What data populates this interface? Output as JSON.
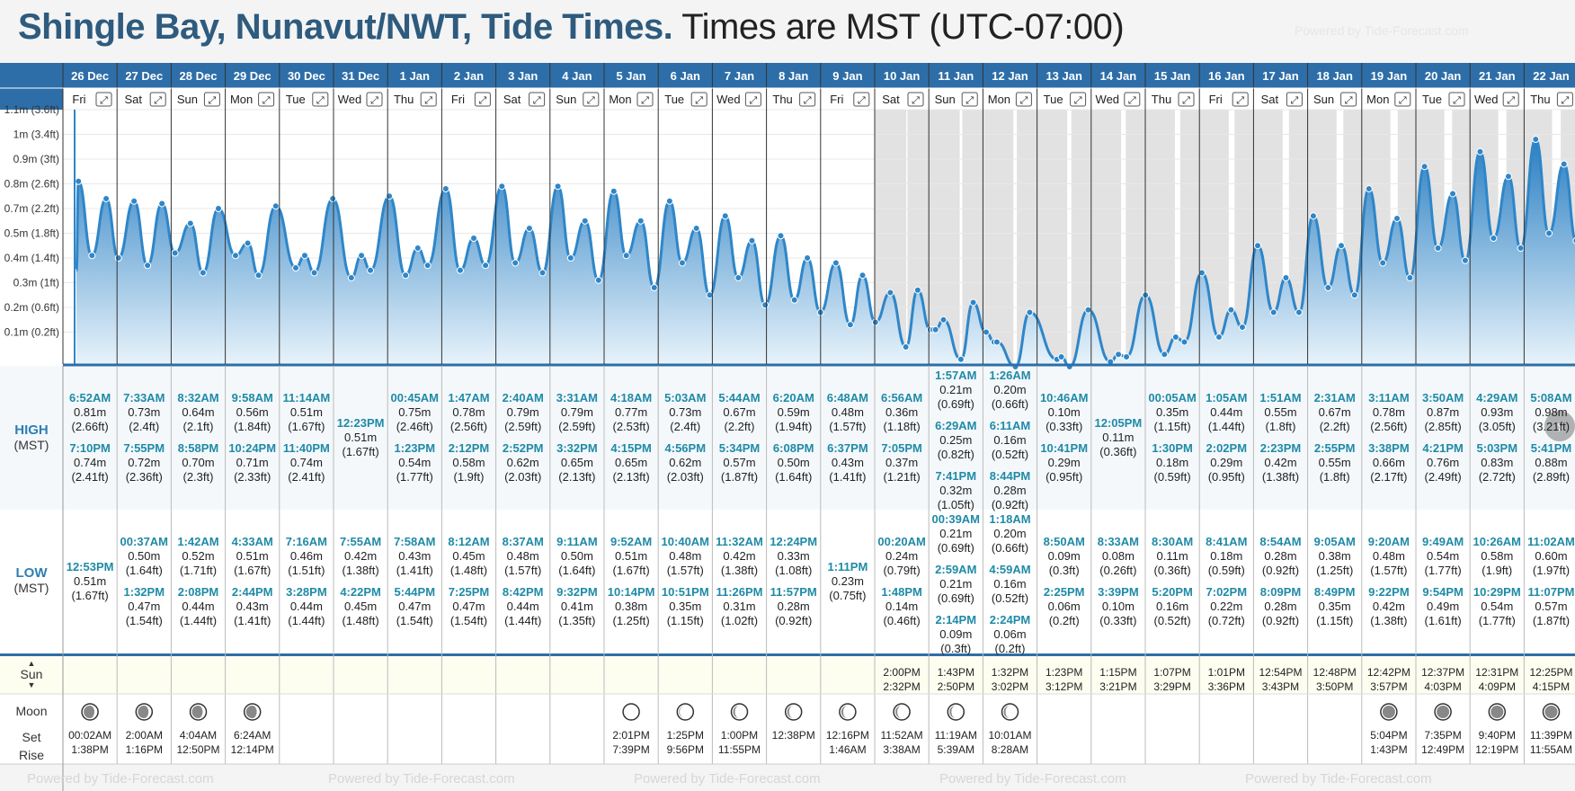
{
  "header": {
    "place": "Shingle Bay, Nunavut/NWT, Tide Times.",
    "tz": "Times are MST (UTC-07:00)",
    "powered": "Powered by Tide-Forecast.com"
  },
  "labels": {
    "high": "HIGH",
    "low": "LOW",
    "mst": "(MST)",
    "sun": "Sun",
    "moon": "Moon",
    "set": "Set",
    "rise": "Rise"
  },
  "icons": {
    "expand": "expand-icon",
    "scroll": "chevron-right-icon",
    "sun_sort": "sort-arrows-icon",
    "moon": "moon-phase-icon"
  },
  "y_axis": [
    "1.1m (3.6ft)",
    "1m (3.4ft)",
    "0.9m (3ft)",
    "0.8m (2.6ft)",
    "0.7m (2.2ft)",
    "0.5m (1.8ft)",
    "0.4m (1.4ft)",
    "0.3m (1ft)",
    "0.2m (0.6ft)",
    "0.1m (0.2ft)"
  ],
  "days": [
    {
      "date": "26 Dec",
      "wd": "Fri",
      "high": [
        [
          "6:52AM",
          "0.81m",
          "(2.66ft)"
        ],
        [
          "7:10PM",
          "0.74m",
          "(2.41ft)"
        ]
      ],
      "low": [
        [
          "12:53PM",
          "0.51m",
          "(1.67ft)"
        ]
      ],
      "sun": [
        "",
        ""
      ],
      "phase": 0.75,
      "moon": [
        "00:02AM",
        "1:38PM"
      ]
    },
    {
      "date": "27 Dec",
      "wd": "Sat",
      "high": [
        [
          "7:33AM",
          "0.73m",
          "(2.4ft)"
        ],
        [
          "7:55PM",
          "0.72m",
          "(2.36ft)"
        ]
      ],
      "low": [
        [
          "00:37AM",
          "0.50m",
          "(1.64ft)"
        ],
        [
          "1:32PM",
          "0.47m",
          "(1.54ft)"
        ]
      ],
      "sun": [
        "",
        ""
      ],
      "phase": 0.75,
      "moon": [
        "2:00AM",
        "1:16PM"
      ]
    },
    {
      "date": "28 Dec",
      "wd": "Sun",
      "high": [
        [
          "8:32AM",
          "0.64m",
          "(2.1ft)"
        ],
        [
          "8:58PM",
          "0.70m",
          "(2.3ft)"
        ]
      ],
      "low": [
        [
          "1:42AM",
          "0.52m",
          "(1.71ft)"
        ],
        [
          "2:08PM",
          "0.44m",
          "(1.44ft)"
        ]
      ],
      "sun": [
        "",
        ""
      ],
      "phase": 0.75,
      "moon": [
        "4:04AM",
        "12:50PM"
      ]
    },
    {
      "date": "29 Dec",
      "wd": "Mon",
      "high": [
        [
          "9:58AM",
          "0.56m",
          "(1.84ft)"
        ],
        [
          "10:24PM",
          "0.71m",
          "(2.33ft)"
        ]
      ],
      "low": [
        [
          "4:33AM",
          "0.51m",
          "(1.67ft)"
        ],
        [
          "2:44PM",
          "0.43m",
          "(1.41ft)"
        ]
      ],
      "sun": [
        "",
        ""
      ],
      "phase": 0.75,
      "moon": [
        "6:24AM",
        "12:14PM"
      ]
    },
    {
      "date": "30 Dec",
      "wd": "Tue",
      "high": [
        [
          "11:14AM",
          "0.51m",
          "(1.67ft)"
        ],
        [
          "11:40PM",
          "0.74m",
          "(2.41ft)"
        ]
      ],
      "low": [
        [
          "7:16AM",
          "0.46m",
          "(1.51ft)"
        ],
        [
          "3:28PM",
          "0.44m",
          "(1.44ft)"
        ]
      ],
      "sun": [
        "",
        ""
      ],
      "phase": -1,
      "moon": [
        "",
        ""
      ]
    },
    {
      "date": "31 Dec",
      "wd": "Wed",
      "high": [
        [
          "12:23PM",
          "0.51m",
          "(1.67ft)"
        ]
      ],
      "low": [
        [
          "7:55AM",
          "0.42m",
          "(1.38ft)"
        ],
        [
          "4:22PM",
          "0.45m",
          "(1.48ft)"
        ]
      ],
      "sun": [
        "",
        ""
      ],
      "phase": -1,
      "moon": [
        "",
        ""
      ]
    },
    {
      "date": "1 Jan",
      "wd": "Thu",
      "high": [
        [
          "00:45AM",
          "0.75m",
          "(2.46ft)"
        ],
        [
          "1:23PM",
          "0.54m",
          "(1.77ft)"
        ]
      ],
      "low": [
        [
          "7:58AM",
          "0.43m",
          "(1.41ft)"
        ],
        [
          "5:44PM",
          "0.47m",
          "(1.54ft)"
        ]
      ],
      "sun": [
        "",
        ""
      ],
      "phase": -1,
      "moon": [
        "",
        ""
      ]
    },
    {
      "date": "2 Jan",
      "wd": "Fri",
      "high": [
        [
          "1:47AM",
          "0.78m",
          "(2.56ft)"
        ],
        [
          "2:12PM",
          "0.58m",
          "(1.9ft)"
        ]
      ],
      "low": [
        [
          "8:12AM",
          "0.45m",
          "(1.48ft)"
        ],
        [
          "7:25PM",
          "0.47m",
          "(1.54ft)"
        ]
      ],
      "sun": [
        "",
        ""
      ],
      "phase": -1,
      "moon": [
        "",
        ""
      ]
    },
    {
      "date": "3 Jan",
      "wd": "Sat",
      "high": [
        [
          "2:40AM",
          "0.79m",
          "(2.59ft)"
        ],
        [
          "2:52PM",
          "0.62m",
          "(2.03ft)"
        ]
      ],
      "low": [
        [
          "8:37AM",
          "0.48m",
          "(1.57ft)"
        ],
        [
          "8:42PM",
          "0.44m",
          "(1.44ft)"
        ]
      ],
      "sun": [
        "",
        ""
      ],
      "phase": -1,
      "moon": [
        "",
        ""
      ]
    },
    {
      "date": "4 Jan",
      "wd": "Sun",
      "high": [
        [
          "3:31AM",
          "0.79m",
          "(2.59ft)"
        ],
        [
          "3:32PM",
          "0.65m",
          "(2.13ft)"
        ]
      ],
      "low": [
        [
          "9:11AM",
          "0.50m",
          "(1.64ft)"
        ],
        [
          "9:32PM",
          "0.41m",
          "(1.35ft)"
        ]
      ],
      "sun": [
        "",
        ""
      ],
      "phase": -1,
      "moon": [
        "",
        ""
      ]
    },
    {
      "date": "5 Jan",
      "wd": "Mon",
      "high": [
        [
          "4:18AM",
          "0.77m",
          "(2.53ft)"
        ],
        [
          "4:15PM",
          "0.65m",
          "(2.13ft)"
        ]
      ],
      "low": [
        [
          "9:52AM",
          "0.51m",
          "(1.67ft)"
        ],
        [
          "10:14PM",
          "0.38m",
          "(1.25ft)"
        ]
      ],
      "sun": [
        "",
        ""
      ],
      "phase": 0.05,
      "moon": [
        "2:01PM",
        "7:39PM"
      ]
    },
    {
      "date": "6 Jan",
      "wd": "Tue",
      "high": [
        [
          "5:03AM",
          "0.73m",
          "(2.4ft)"
        ],
        [
          "4:56PM",
          "0.62m",
          "(2.03ft)"
        ]
      ],
      "low": [
        [
          "10:40AM",
          "0.48m",
          "(1.57ft)"
        ],
        [
          "10:51PM",
          "0.35m",
          "(1.15ft)"
        ]
      ],
      "sun": [
        "",
        ""
      ],
      "phase": 0.15,
      "moon": [
        "1:25PM",
        "9:56PM"
      ]
    },
    {
      "date": "7 Jan",
      "wd": "Wed",
      "high": [
        [
          "5:44AM",
          "0.67m",
          "(2.2ft)"
        ],
        [
          "5:34PM",
          "0.57m",
          "(1.87ft)"
        ]
      ],
      "low": [
        [
          "11:32AM",
          "0.42m",
          "(1.38ft)"
        ],
        [
          "11:26PM",
          "0.31m",
          "(1.02ft)"
        ]
      ],
      "sun": [
        "",
        ""
      ],
      "phase": 0.25,
      "moon": [
        "1:00PM",
        "11:55PM"
      ]
    },
    {
      "date": "8 Jan",
      "wd": "Thu",
      "high": [
        [
          "6:20AM",
          "0.59m",
          "(1.94ft)"
        ],
        [
          "6:08PM",
          "0.50m",
          "(1.64ft)"
        ]
      ],
      "low": [
        [
          "12:24PM",
          "0.33m",
          "(1.08ft)"
        ],
        [
          "11:57PM",
          "0.28m",
          "(0.92ft)"
        ]
      ],
      "sun": [
        "",
        ""
      ],
      "phase": 0.25,
      "moon": [
        "12:38PM",
        ""
      ]
    },
    {
      "date": "9 Jan",
      "wd": "Fri",
      "high": [
        [
          "6:48AM",
          "0.48m",
          "(1.57ft)"
        ],
        [
          "6:37PM",
          "0.43m",
          "(1.41ft)"
        ]
      ],
      "low": [
        [
          "1:11PM",
          "0.23m",
          "(0.75ft)"
        ]
      ],
      "sun": [
        "",
        ""
      ],
      "phase": 0.25,
      "moon": [
        "12:16PM",
        "1:46AM"
      ]
    },
    {
      "date": "10 Jan",
      "wd": "Sat",
      "high": [
        [
          "6:56AM",
          "0.36m",
          "(1.18ft)"
        ],
        [
          "7:05PM",
          "0.37m",
          "(1.21ft)"
        ]
      ],
      "low": [
        [
          "00:20AM",
          "0.24m",
          "(0.79ft)"
        ],
        [
          "1:48PM",
          "0.14m",
          "(0.46ft)"
        ]
      ],
      "sun": [
        "2:00PM",
        "2:32PM"
      ],
      "phase": 0.25,
      "moon": [
        "11:52AM",
        "3:38AM"
      ]
    },
    {
      "date": "11 Jan",
      "wd": "Sun",
      "high": [
        [
          "1:57AM",
          "0.21m",
          "(0.69ft)"
        ],
        [
          "6:29AM",
          "0.25m",
          "(0.82ft)"
        ],
        [
          "7:41PM",
          "0.32m",
          "(1.05ft)"
        ]
      ],
      "low": [
        [
          "00:39AM",
          "0.21m",
          "(0.69ft)"
        ],
        [
          "2:59AM",
          "0.21m",
          "(0.69ft)"
        ],
        [
          "2:14PM",
          "0.09m",
          "(0.3ft)"
        ]
      ],
      "sun": [
        "1:43PM",
        "2:50PM"
      ],
      "phase": 0.25,
      "moon": [
        "11:19AM",
        "5:39AM"
      ]
    },
    {
      "date": "12 Jan",
      "wd": "Mon",
      "high": [
        [
          "1:26AM",
          "0.20m",
          "(0.66ft)"
        ],
        [
          "6:11AM",
          "0.16m",
          "(0.52ft)"
        ],
        [
          "8:44PM",
          "0.28m",
          "(0.92ft)"
        ]
      ],
      "low": [
        [
          "1:18AM",
          "0.20m",
          "(0.66ft)"
        ],
        [
          "4:59AM",
          "0.16m",
          "(0.52ft)"
        ],
        [
          "2:24PM",
          "0.06m",
          "(0.2ft)"
        ]
      ],
      "sun": [
        "1:32PM",
        "3:02PM"
      ],
      "phase": 0.25,
      "moon": [
        "10:01AM",
        "8:28AM"
      ]
    },
    {
      "date": "13 Jan",
      "wd": "Tue",
      "high": [
        [
          "10:46AM",
          "0.10m",
          "(0.33ft)"
        ],
        [
          "10:41PM",
          "0.29m",
          "(0.95ft)"
        ]
      ],
      "low": [
        [
          "8:50AM",
          "0.09m",
          "(0.3ft)"
        ],
        [
          "2:25PM",
          "0.06m",
          "(0.2ft)"
        ]
      ],
      "sun": [
        "1:23PM",
        "3:12PM"
      ],
      "phase": -1,
      "moon": [
        "",
        ""
      ]
    },
    {
      "date": "14 Jan",
      "wd": "Wed",
      "high": [
        [
          "12:05PM",
          "0.11m",
          "(0.36ft)"
        ]
      ],
      "low": [
        [
          "8:33AM",
          "0.08m",
          "(0.26ft)"
        ],
        [
          "3:39PM",
          "0.10m",
          "(0.33ft)"
        ]
      ],
      "sun": [
        "1:15PM",
        "3:21PM"
      ],
      "phase": -1,
      "moon": [
        "",
        ""
      ]
    },
    {
      "date": "15 Jan",
      "wd": "Thu",
      "high": [
        [
          "00:05AM",
          "0.35m",
          "(1.15ft)"
        ],
        [
          "1:30PM",
          "0.18m",
          "(0.59ft)"
        ]
      ],
      "low": [
        [
          "8:30AM",
          "0.11m",
          "(0.36ft)"
        ],
        [
          "5:20PM",
          "0.16m",
          "(0.52ft)"
        ]
      ],
      "sun": [
        "1:07PM",
        "3:29PM"
      ],
      "phase": -1,
      "moon": [
        "",
        ""
      ]
    },
    {
      "date": "16 Jan",
      "wd": "Fri",
      "high": [
        [
          "1:05AM",
          "0.44m",
          "(1.44ft)"
        ],
        [
          "2:02PM",
          "0.29m",
          "(0.95ft)"
        ]
      ],
      "low": [
        [
          "8:41AM",
          "0.18m",
          "(0.59ft)"
        ],
        [
          "7:02PM",
          "0.22m",
          "(0.72ft)"
        ]
      ],
      "sun": [
        "1:01PM",
        "3:36PM"
      ],
      "phase": -1,
      "moon": [
        "",
        ""
      ]
    },
    {
      "date": "17 Jan",
      "wd": "Sat",
      "high": [
        [
          "1:51AM",
          "0.55m",
          "(1.8ft)"
        ],
        [
          "2:23PM",
          "0.42m",
          "(1.38ft)"
        ]
      ],
      "low": [
        [
          "8:54AM",
          "0.28m",
          "(0.92ft)"
        ],
        [
          "8:09PM",
          "0.28m",
          "(0.92ft)"
        ]
      ],
      "sun": [
        "12:54PM",
        "3:43PM"
      ],
      "phase": -1,
      "moon": [
        "",
        ""
      ]
    },
    {
      "date": "18 Jan",
      "wd": "Sun",
      "high": [
        [
          "2:31AM",
          "0.67m",
          "(2.2ft)"
        ],
        [
          "2:55PM",
          "0.55m",
          "(1.8ft)"
        ]
      ],
      "low": [
        [
          "9:05AM",
          "0.38m",
          "(1.25ft)"
        ],
        [
          "8:49PM",
          "0.35m",
          "(1.15ft)"
        ]
      ],
      "sun": [
        "12:48PM",
        "3:50PM"
      ],
      "phase": -1,
      "moon": [
        "",
        ""
      ]
    },
    {
      "date": "19 Jan",
      "wd": "Mon",
      "high": [
        [
          "3:11AM",
          "0.78m",
          "(2.56ft)"
        ],
        [
          "3:38PM",
          "0.66m",
          "(2.17ft)"
        ]
      ],
      "low": [
        [
          "9:20AM",
          "0.48m",
          "(1.57ft)"
        ],
        [
          "9:22PM",
          "0.42m",
          "(1.38ft)"
        ]
      ],
      "sun": [
        "12:42PM",
        "3:57PM"
      ],
      "phase": 1,
      "moon": [
        "5:04PM",
        "1:43PM"
      ]
    },
    {
      "date": "20 Jan",
      "wd": "Tue",
      "high": [
        [
          "3:50AM",
          "0.87m",
          "(2.85ft)"
        ],
        [
          "4:21PM",
          "0.76m",
          "(2.49ft)"
        ]
      ],
      "low": [
        [
          "9:49AM",
          "0.54m",
          "(1.77ft)"
        ],
        [
          "9:54PM",
          "0.49m",
          "(1.61ft)"
        ]
      ],
      "sun": [
        "12:37PM",
        "4:03PM"
      ],
      "phase": 1,
      "moon": [
        "7:35PM",
        "12:49PM"
      ]
    },
    {
      "date": "21 Jan",
      "wd": "Wed",
      "high": [
        [
          "4:29AM",
          "0.93m",
          "(3.05ft)"
        ],
        [
          "5:03PM",
          "0.83m",
          "(2.72ft)"
        ]
      ],
      "low": [
        [
          "10:26AM",
          "0.58m",
          "(1.9ft)"
        ],
        [
          "10:29PM",
          "0.54m",
          "(1.77ft)"
        ]
      ],
      "sun": [
        "12:31PM",
        "4:09PM"
      ],
      "phase": 1,
      "moon": [
        "9:40PM",
        "12:19PM"
      ]
    },
    {
      "date": "22 Jan",
      "wd": "Thu",
      "high": [
        [
          "5:08AM",
          "0.98m",
          "(3.21ft)"
        ],
        [
          "5:41PM",
          "0.88m",
          "(2.89ft)"
        ]
      ],
      "low": [
        [
          "11:02AM",
          "0.60m",
          "(1.97ft)"
        ],
        [
          "11:07PM",
          "0.57m",
          "(1.87ft)"
        ]
      ],
      "sun": [
        "12:25PM",
        "4:15PM"
      ],
      "phase": 1,
      "moon": [
        "11:39PM",
        "11:55AM"
      ]
    }
  ]
}
